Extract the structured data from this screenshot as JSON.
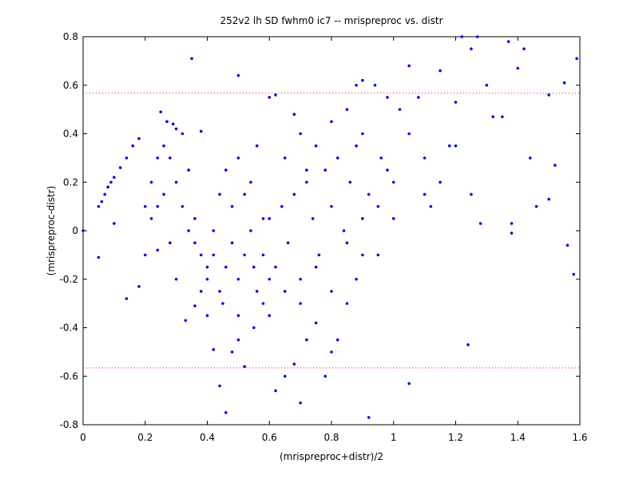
{
  "chart_data": {
    "type": "scatter",
    "title": "252v2 lh SD fwhm0 ic7 -- mrispreproc vs. distr",
    "x_label": "(mrispreproc+distr)/2",
    "y_label": "(mrispreproc-distr)",
    "color": "#0000ff",
    "reference_lines": [
      0.567,
      -0.566
    ],
    "reference_color": "#ff0000",
    "xlim": [
      0,
      1.6
    ],
    "xticks": [
      0,
      0.2,
      0.4,
      0.6,
      0.8,
      1,
      1.2,
      1.4,
      1.6
    ],
    "ylim": [
      -0.8,
      0.8
    ],
    "yticks": [
      -0.8,
      -0.6,
      -0.4,
      -0.2,
      0,
      0.2,
      0.4,
      0.6,
      0.8
    ],
    "grid": false,
    "x": [
      0,
      0.05,
      0.06,
      0.07,
      0.08,
      0.09,
      0.1,
      0.12,
      0.14,
      0.16,
      0.18,
      0.05,
      0.1,
      0.14,
      0.18,
      0.2,
      0.22,
      0.25,
      0.27,
      0.29,
      0.35,
      0.38,
      0.5,
      0.3,
      0.32,
      0.34,
      0.24,
      0.26,
      0.28,
      0.3,
      0.33,
      0.36,
      0.38,
      0.4,
      0.42,
      0.44,
      0.46,
      0.48,
      0.5,
      0.52,
      0.55,
      0.58,
      0.6,
      0.62,
      0.65,
      0.68,
      0.7,
      0.72,
      0.75,
      0.78,
      0.8,
      0.82,
      0.85,
      0.88,
      0.92,
      0.9,
      0.95,
      1,
      1.05,
      1.02,
      1.05,
      1.1,
      1.12,
      1.15,
      1.18,
      1.2,
      1.22,
      1.24,
      1.25,
      1.27,
      1.28,
      1.3,
      1.32,
      1.35,
      1.37,
      1.38,
      1.4,
      1.42,
      1.44,
      1.46,
      1.5,
      1.52,
      1.55,
      1.56,
      1.58,
      1.59,
      1.5,
      1.38,
      0.6,
      0.62,
      0.4,
      0.42,
      0.44,
      0.46,
      0.48,
      0.5,
      0.52,
      0.54,
      0.56,
      0.58,
      0.6,
      0.62,
      0.64,
      0.66,
      0.68,
      0.7,
      0.72,
      0.74,
      0.76,
      0.78,
      0.8,
      0.82,
      0.84,
      0.86,
      0.88,
      0.9,
      0.92,
      0.94,
      0.96,
      0.98,
      0.42,
      0.44,
      0.46,
      0.48,
      0.5,
      0.52,
      0.54,
      0.56,
      0.58,
      0.36,
      0.38,
      0.4,
      0.45,
      0.5,
      0.55,
      0.6,
      0.65,
      0.7,
      0.75,
      0.8,
      0.85,
      0.9,
      0.95,
      1.0,
      1.05,
      1.08,
      1.1,
      1.15,
      1.2,
      1.25,
      0.22,
      0.24,
      0.26,
      0.28,
      0.3,
      0.32,
      0.34,
      0.36,
      0.24,
      0.2,
      0.65,
      0.7,
      0.75,
      0.8,
      0.85,
      0.88,
      0.9,
      0.98,
      0.68,
      0.72
    ],
    "values": [
      0,
      0.1,
      0.12,
      0.15,
      0.18,
      0.2,
      0.22,
      0.26,
      0.3,
      0.35,
      0.38,
      -0.11,
      0.03,
      -0.28,
      -0.23,
      -0.1,
      0.05,
      0.49,
      0.45,
      0.44,
      0.71,
      0.41,
      0.64,
      0.2,
      0.1,
      0.25,
      0.3,
      0.15,
      -0.05,
      -0.2,
      -0.37,
      -0.31,
      -0.1,
      -0.15,
      -0.49,
      -0.64,
      -0.75,
      -0.5,
      -0.45,
      -0.56,
      -0.4,
      -0.3,
      -0.2,
      -0.66,
      -0.6,
      -0.55,
      -0.71,
      -0.45,
      -0.38,
      -0.6,
      -0.5,
      -0.45,
      -0.3,
      -0.2,
      -0.77,
      -0.1,
      0.1,
      0.2,
      -0.63,
      0.5,
      0.68,
      0.3,
      0.1,
      0.66,
      0.35,
      0.53,
      0.8,
      -0.47,
      0.75,
      0.8,
      0.03,
      0.6,
      0.47,
      0.47,
      0.78,
      -0.01,
      0.67,
      0.75,
      0.3,
      0.1,
      0.56,
      0.27,
      0.61,
      -0.06,
      -0.18,
      0.71,
      0.13,
      0.03,
      0.55,
      0.56,
      -0.2,
      -0.1,
      -0.25,
      -0.15,
      -0.05,
      -0.2,
      -0.1,
      0.0,
      -0.25,
      -0.1,
      0.05,
      -0.15,
      0.1,
      -0.05,
      0.15,
      -0.2,
      0.2,
      0.05,
      -0.1,
      0.25,
      0.1,
      0.3,
      0.0,
      0.2,
      0.35,
      0.4,
      0.15,
      0.6,
      0.3,
      0.25,
      0.0,
      0.15,
      0.25,
      0.1,
      0.3,
      0.15,
      0.2,
      0.35,
      0.05,
      0.05,
      -0.25,
      -0.35,
      -0.3,
      -0.35,
      -0.15,
      -0.35,
      -0.25,
      -0.3,
      -0.15,
      -0.25,
      -0.05,
      0.05,
      -0.1,
      0.05,
      0.4,
      0.55,
      0.15,
      0.2,
      0.35,
      0.15,
      0.2,
      0.1,
      0.35,
      0.3,
      0.42,
      0.4,
      0.0,
      -0.05,
      -0.08,
      0.1,
      0.3,
      0.4,
      0.35,
      0.45,
      0.5,
      0.6,
      0.62,
      0.55,
      0.48,
      0.25
    ]
  }
}
